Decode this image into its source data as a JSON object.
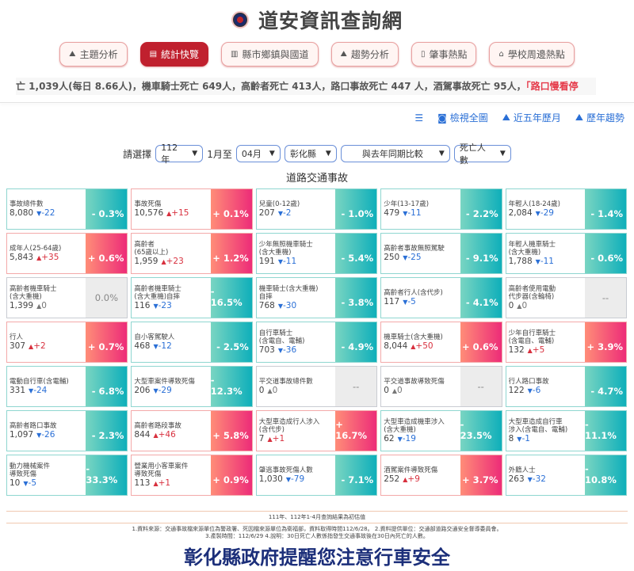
{
  "site_title": "道安資訊查詢網",
  "nav": [
    {
      "label": "主題分析",
      "icon": "area-chart-icon"
    },
    {
      "label": "統計快覽",
      "icon": "newspaper-icon",
      "active": true
    },
    {
      "label": "縣市鄉鎮與國道",
      "icon": "bar-chart-icon"
    },
    {
      "label": "趨勢分析",
      "icon": "area-chart-icon"
    },
    {
      "label": "肇事熱點",
      "icon": "map-icon"
    },
    {
      "label": "學校周邊熱點",
      "icon": "school-icon"
    }
  ],
  "ticker": {
    "text": "亡 1,039人(每日 8.66人)，機車騎士死亡 649人，高齡者死亡 413人，路口事故死亡 447 人，酒駕事故死亡 95人，",
    "highlight": "「路口慢看停"
  },
  "tools": [
    {
      "label": "",
      "icon": "list-icon"
    },
    {
      "label": "檢視全圖",
      "icon": "camera-icon"
    },
    {
      "label": "近五年歷月",
      "icon": "area-chart-icon"
    },
    {
      "label": "歷年趨勢",
      "icon": "area-chart-icon"
    }
  ],
  "controls": {
    "prompt": "請選擇",
    "year": "112年",
    "from_label": "1月至",
    "month": "04月",
    "county": "彰化縣",
    "compare": "與去年同期比較",
    "metric": "死亡人數"
  },
  "section_title": "道路交通事故",
  "colors": {
    "down": "#0fafba",
    "up": "#ed2c78",
    "neutral": "#ececec"
  },
  "cells": [
    {
      "l1": "事故總件數",
      "l2": "",
      "v": "8,080",
      "d": "-22",
      "t": "dn",
      "p": "- 0.3%"
    },
    {
      "l1": "事故死傷",
      "l2": "",
      "v": "10,576",
      "d": "+15",
      "t": "up",
      "p": "+ 0.1%"
    },
    {
      "l1": "兒童(0-12歲)",
      "l2": "",
      "v": "207",
      "d": "-2",
      "t": "dn",
      "p": "- 1.0%"
    },
    {
      "l1": "少年(13-17歲)",
      "l2": "",
      "v": "479",
      "d": "-11",
      "t": "dn",
      "p": "- 2.2%"
    },
    {
      "l1": "年輕人(18-24歲)",
      "l2": "",
      "v": "2,084",
      "d": "-29",
      "t": "dn",
      "p": "- 1.4%"
    },
    {
      "l1": "成年人(25-64歲)",
      "l2": "",
      "v": "5,843",
      "d": "+35",
      "t": "up",
      "p": "+ 0.6%"
    },
    {
      "l1": "高齡者",
      "l2": "(65歲以上)",
      "v": "1,959",
      "d": "+23",
      "t": "up",
      "p": "+ 1.2%"
    },
    {
      "l1": "少年無照機車騎士",
      "l2": "(含大重機)",
      "v": "191",
      "d": "-11",
      "t": "dn",
      "p": "- 5.4%"
    },
    {
      "l1": "高齡者事故無照駕駛",
      "l2": "",
      "v": "250",
      "d": "-25",
      "t": "dn",
      "p": "- 9.1%"
    },
    {
      "l1": "年輕人機車騎士",
      "l2": "(含大重機)",
      "v": "1,788",
      "d": "-11",
      "t": "dn",
      "p": "- 0.6%"
    },
    {
      "l1": "高齡者機車騎士",
      "l2": "(含大重機)",
      "v": "1,399",
      "d": "0",
      "t": "nt",
      "p": "0.0%"
    },
    {
      "l1": "高齡者機車騎士",
      "l2": "(含大重機)自摔",
      "v": "116",
      "d": "-23",
      "t": "dn",
      "p": "- 16.5%"
    },
    {
      "l1": "機車騎士(含大重機)",
      "l2": "自摔",
      "v": "768",
      "d": "-30",
      "t": "dn",
      "p": "- 3.8%"
    },
    {
      "l1": "高齡者行人(含代步)",
      "l2": "",
      "v": "117",
      "d": "-5",
      "t": "dn",
      "p": "- 4.1%"
    },
    {
      "l1": "高齡者使用電動",
      "l2": "代步器(含輪椅)",
      "v": "0",
      "d": "0",
      "t": "nt",
      "p": "--"
    },
    {
      "l1": "行人",
      "l2": "",
      "v": "307",
      "d": "+2",
      "t": "up",
      "p": "+ 0.7%"
    },
    {
      "l1": "自小客駕駛人",
      "l2": "",
      "v": "468",
      "d": "-12",
      "t": "dn",
      "p": "- 2.5%"
    },
    {
      "l1": "自行車騎士",
      "l2": "(含電自、電輔)",
      "v": "703",
      "d": "-36",
      "t": "dn",
      "p": "- 4.9%"
    },
    {
      "l1": "機車騎士(含大重機)",
      "l2": "",
      "v": "8,044",
      "d": "+50",
      "t": "up",
      "p": "+ 0.6%"
    },
    {
      "l1": "少年自行車騎士",
      "l2": "(含電自、電輔)",
      "v": "132",
      "d": "+5",
      "t": "up",
      "p": "+ 3.9%"
    },
    {
      "l1": "電動自行車(含電輔)",
      "l2": "",
      "v": "331",
      "d": "-24",
      "t": "dn",
      "p": "- 6.8%"
    },
    {
      "l1": "大型車案件導致死傷",
      "l2": "",
      "v": "206",
      "d": "-29",
      "t": "dn",
      "p": "- 12.3%"
    },
    {
      "l1": "平交道事故總件數",
      "l2": "",
      "v": "0",
      "d": "0",
      "t": "nt",
      "p": "--"
    },
    {
      "l1": "平交道事故導致死傷",
      "l2": "",
      "v": "0",
      "d": "0",
      "t": "nt",
      "p": "--"
    },
    {
      "l1": "行人路口事故",
      "l2": "",
      "v": "122",
      "d": "-6",
      "t": "dn",
      "p": "- 4.7%"
    },
    {
      "l1": "高齡者路口事故",
      "l2": "",
      "v": "1,097",
      "d": "-26",
      "t": "dn",
      "p": "- 2.3%"
    },
    {
      "l1": "高齡者路段事故",
      "l2": "",
      "v": "844",
      "d": "+46",
      "t": "up",
      "p": "+ 5.8%"
    },
    {
      "l1": "大型車造成行人涉入",
      "l2": "(含代步)",
      "v": "7",
      "d": "+1",
      "t": "up",
      "p": "+ 16.7%"
    },
    {
      "l1": "大型車造成機車涉入",
      "l2": "(含大重機)",
      "v": "62",
      "d": "-19",
      "t": "dn",
      "p": "- 23.5%"
    },
    {
      "l1": "大型車造成自行車",
      "l2": "涉入(含電自、電輔)",
      "v": "8",
      "d": "-1",
      "t": "dn",
      "p": "- 11.1%"
    },
    {
      "l1": "動力機械案件",
      "l2": "導致死傷",
      "v": "10",
      "d": "-5",
      "t": "dn",
      "p": "- 33.3%"
    },
    {
      "l1": "營業用小客車案件",
      "l2": "導致死傷",
      "v": "113",
      "d": "+1",
      "t": "up",
      "p": "+ 0.9%"
    },
    {
      "l1": "肇逃事故死傷人數",
      "l2": "",
      "v": "1,030",
      "d": "-79",
      "t": "dn",
      "p": "- 7.1%"
    },
    {
      "l1": "酒駕案件導致死傷",
      "l2": "",
      "v": "252",
      "d": "+9",
      "t": "up",
      "p": "+ 3.7%"
    },
    {
      "l1": "外籍人士",
      "l2": "",
      "v": "263",
      "d": "-32",
      "t": "dn",
      "p": "- 10.8%"
    }
  ],
  "footer": {
    "note": "111年、112年1-4月查詢結果為初估值",
    "line1": "1.資料來源：交通事故檔來源單位為警政署、死因檔來源單位為衛福部，資料取得時間112/6/28。 2.資料提供單位：交通部道路交通安全督導委員會。",
    "line2": "3.產製時間：112/6/29 4.說明：30日死亡人數係指發生交通事故後在30日內死亡的人數。"
  },
  "banner": "彰化縣政府提醒您注意行車安全"
}
